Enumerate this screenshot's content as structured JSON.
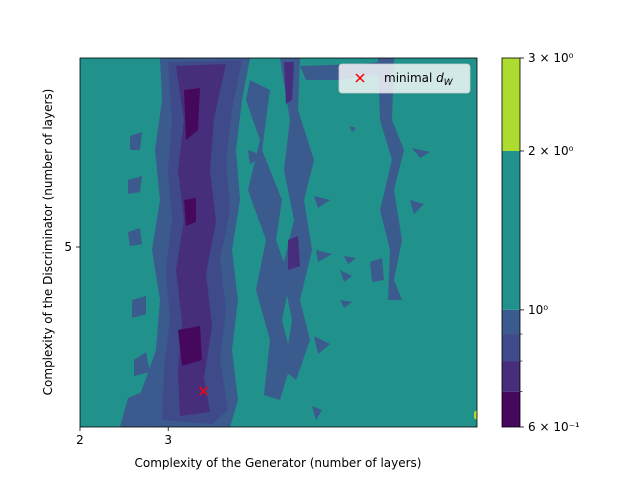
{
  "chart_data": {
    "type": "heatmap",
    "subtype": "filled-contour",
    "title": "",
    "xlabel": "Complexity of the Generator (number of layers)",
    "ylabel": "Complexity of the Discriminator (number of layers)",
    "xlim": [
      2,
      6.5
    ],
    "ylim": [
      3,
      7.1
    ],
    "x_ticks": [
      {
        "value": 2,
        "label": "2"
      },
      {
        "value": 3,
        "label": "3"
      }
    ],
    "y_ticks": [
      {
        "value": 5,
        "label": "5"
      }
    ],
    "colorbar": {
      "scale": "log",
      "min": 0.6,
      "max": 3,
      "tick_labels": [
        "6 × 10⁻¹",
        "10⁰",
        "2 × 10⁰",
        "3 × 10⁰"
      ],
      "tick_values": [
        0.6,
        1,
        2,
        3
      ],
      "levels": [
        {
          "from": 0.6,
          "to": 0.7,
          "color": "#46085c"
        },
        {
          "from": 0.7,
          "to": 0.8,
          "color": "#472e7c"
        },
        {
          "from": 0.8,
          "to": 0.9,
          "color": "#3e4a89"
        },
        {
          "from": 0.9,
          "to": 1.0,
          "color": "#3b5a8d"
        },
        {
          "from": 1.0,
          "to": 2.0,
          "color": "#21918c"
        },
        {
          "from": 2.0,
          "to": 3.0,
          "color": "#addc30"
        }
      ]
    },
    "background_level_color": "#21918c",
    "legend": {
      "position": "top-right",
      "entries": [
        {
          "label": "minimal d_W",
          "marker": "x",
          "color": "#ff0000"
        }
      ]
    },
    "minimal_point": {
      "x": 3.4,
      "y": 3.4
    },
    "grid": false
  }
}
